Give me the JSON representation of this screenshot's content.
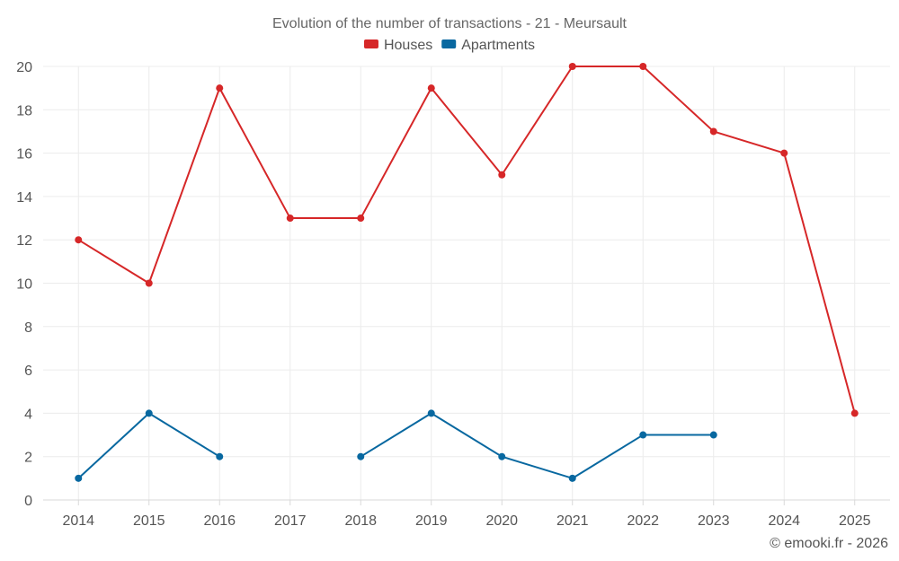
{
  "chart_data": {
    "type": "line",
    "title": "Evolution of the number of transactions - 21 - Meursault",
    "xlabel": "",
    "ylabel": "",
    "categories": [
      "2014",
      "2015",
      "2016",
      "2017",
      "2018",
      "2019",
      "2020",
      "2021",
      "2022",
      "2023",
      "2024",
      "2025"
    ],
    "ylim": [
      0,
      20
    ],
    "yticks": [
      0,
      2,
      4,
      6,
      8,
      10,
      12,
      14,
      16,
      18,
      20
    ],
    "grid": true,
    "legend_position": "top-center",
    "series": [
      {
        "name": "Houses",
        "color": "#d62728",
        "values": [
          12,
          10,
          19,
          13,
          13,
          19,
          15,
          20,
          20,
          17,
          16,
          4
        ]
      },
      {
        "name": "Apartments",
        "color": "#0868a0",
        "values": [
          1,
          4,
          2,
          null,
          2,
          4,
          2,
          1,
          3,
          3,
          null,
          null
        ]
      }
    ]
  },
  "credit": "© emooki.fr - 2026"
}
